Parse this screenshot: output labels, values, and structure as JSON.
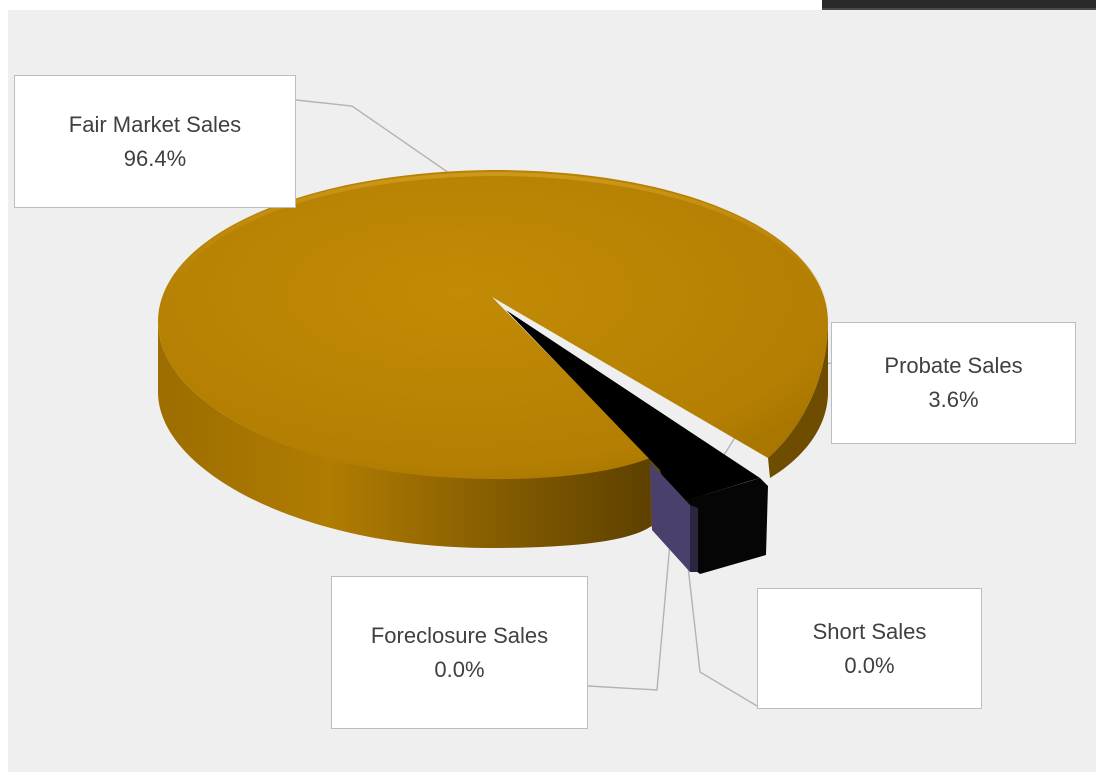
{
  "chart_data": {
    "type": "pie",
    "style": "3d-exploded",
    "slices": [
      {
        "label": "Fair Market Sales",
        "percent_label": "96.4%",
        "value": 96.4,
        "color": "#b8860b"
      },
      {
        "label": "Probate Sales",
        "percent_label": "3.6%",
        "value": 3.6,
        "color": "#000000"
      },
      {
        "label": "Short Sales",
        "percent_label": "0.0%",
        "value": 0.0,
        "color": "#3a3352"
      },
      {
        "label": "Foreclosure Sales",
        "percent_label": "0.0%",
        "value": 0.0,
        "color": "#4b3f6b"
      }
    ],
    "legend": "none",
    "data_labels": "callouts"
  }
}
